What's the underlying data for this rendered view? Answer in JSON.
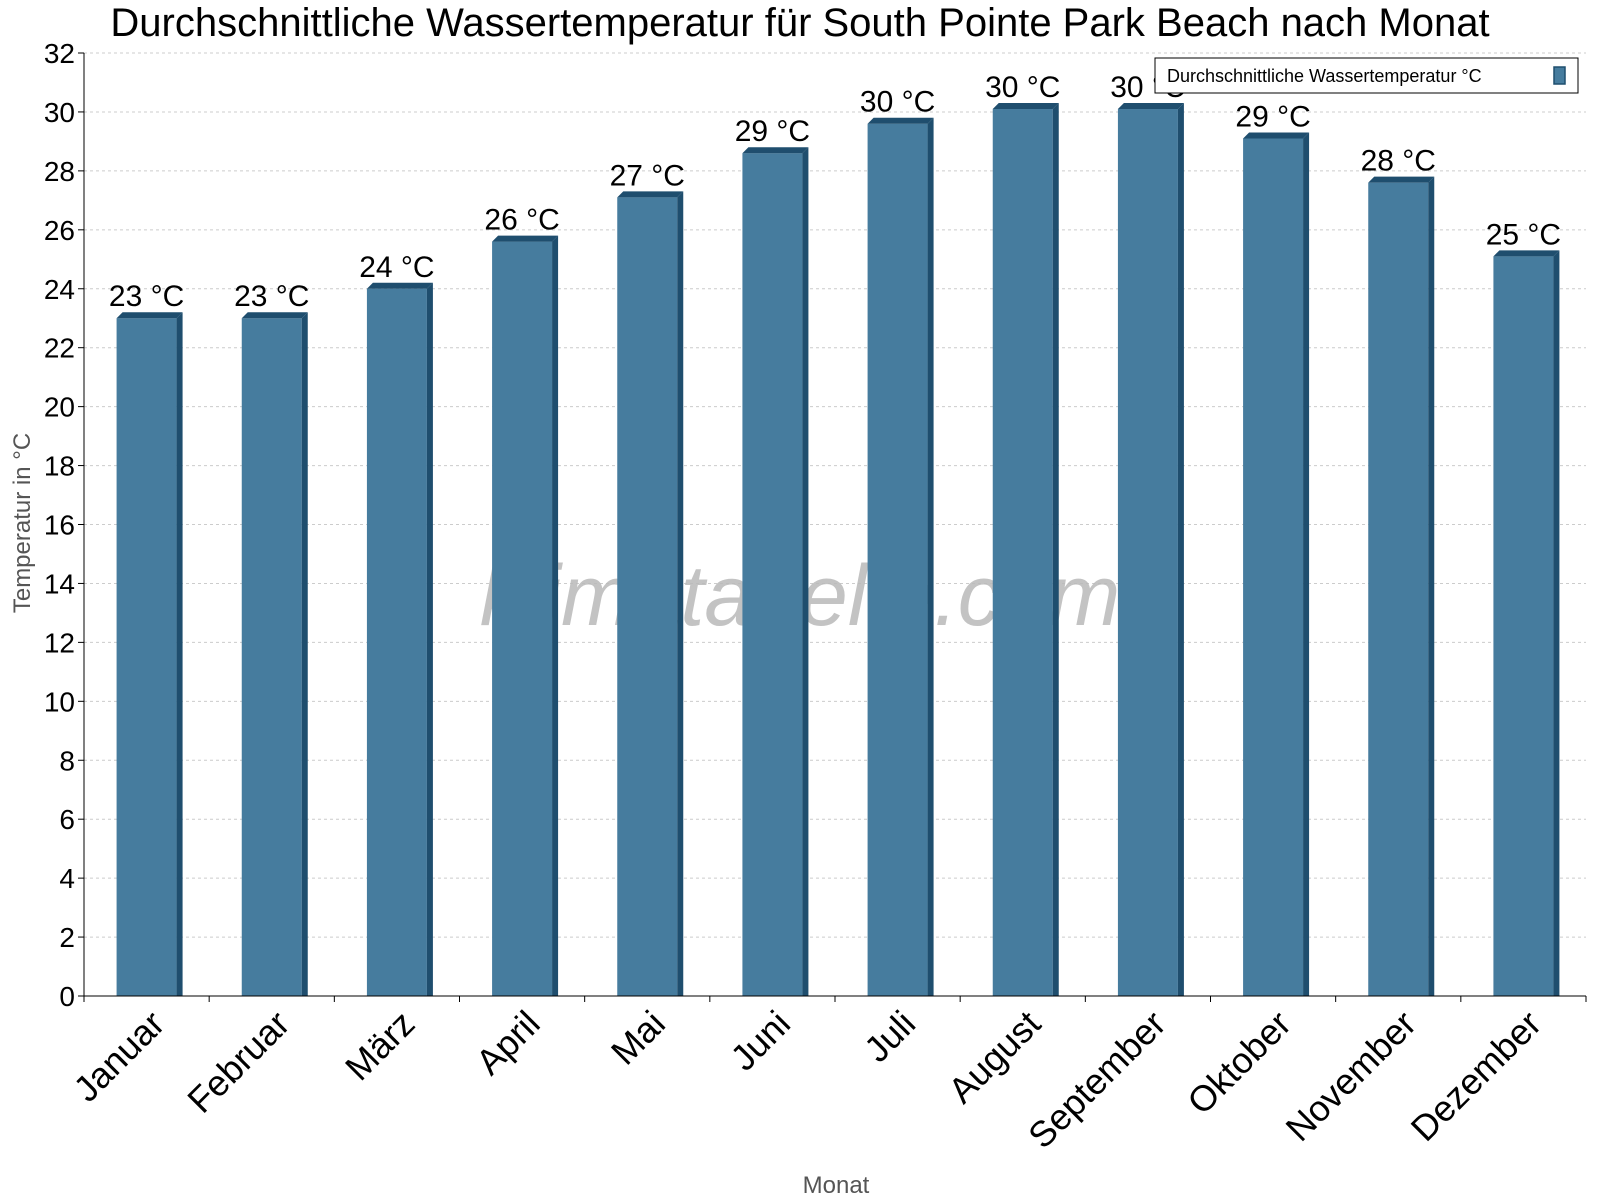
{
  "chart_data": {
    "type": "bar",
    "title": "Durchschnittliche Wassertemperatur für South Pointe Park Beach nach Monat",
    "xlabel": "Monat",
    "ylabel": "Temperatur in °C",
    "categories": [
      "Januar",
      "Februar",
      "März",
      "April",
      "Mai",
      "Juni",
      "Juli",
      "August",
      "September",
      "Oktober",
      "November",
      "Dezember"
    ],
    "series": [
      {
        "name": "Durchschnittliche Wassertemperatur °C",
        "values": [
          23,
          23,
          24,
          25.6,
          27.1,
          28.6,
          29.6,
          30.1,
          30.1,
          29.1,
          27.6,
          25.1
        ],
        "labels": [
          "23 °C",
          "23 °C",
          "24 °C",
          "26 °C",
          "27 °C",
          "29 °C",
          "30 °C",
          "30 °C",
          "30 °C",
          "29 °C",
          "28 °C",
          "25 °C"
        ]
      }
    ],
    "ylim": [
      0,
      32
    ],
    "yticks": [
      0,
      2,
      4,
      6,
      8,
      10,
      12,
      14,
      16,
      18,
      20,
      22,
      24,
      26,
      28,
      30,
      32
    ],
    "grid": true,
    "legend": "top-right",
    "colors": {
      "bar": "#467c9e",
      "bar_dark": "#1f4e6e",
      "grid": "#cccccc"
    },
    "watermark": "klimatabelle.com"
  }
}
